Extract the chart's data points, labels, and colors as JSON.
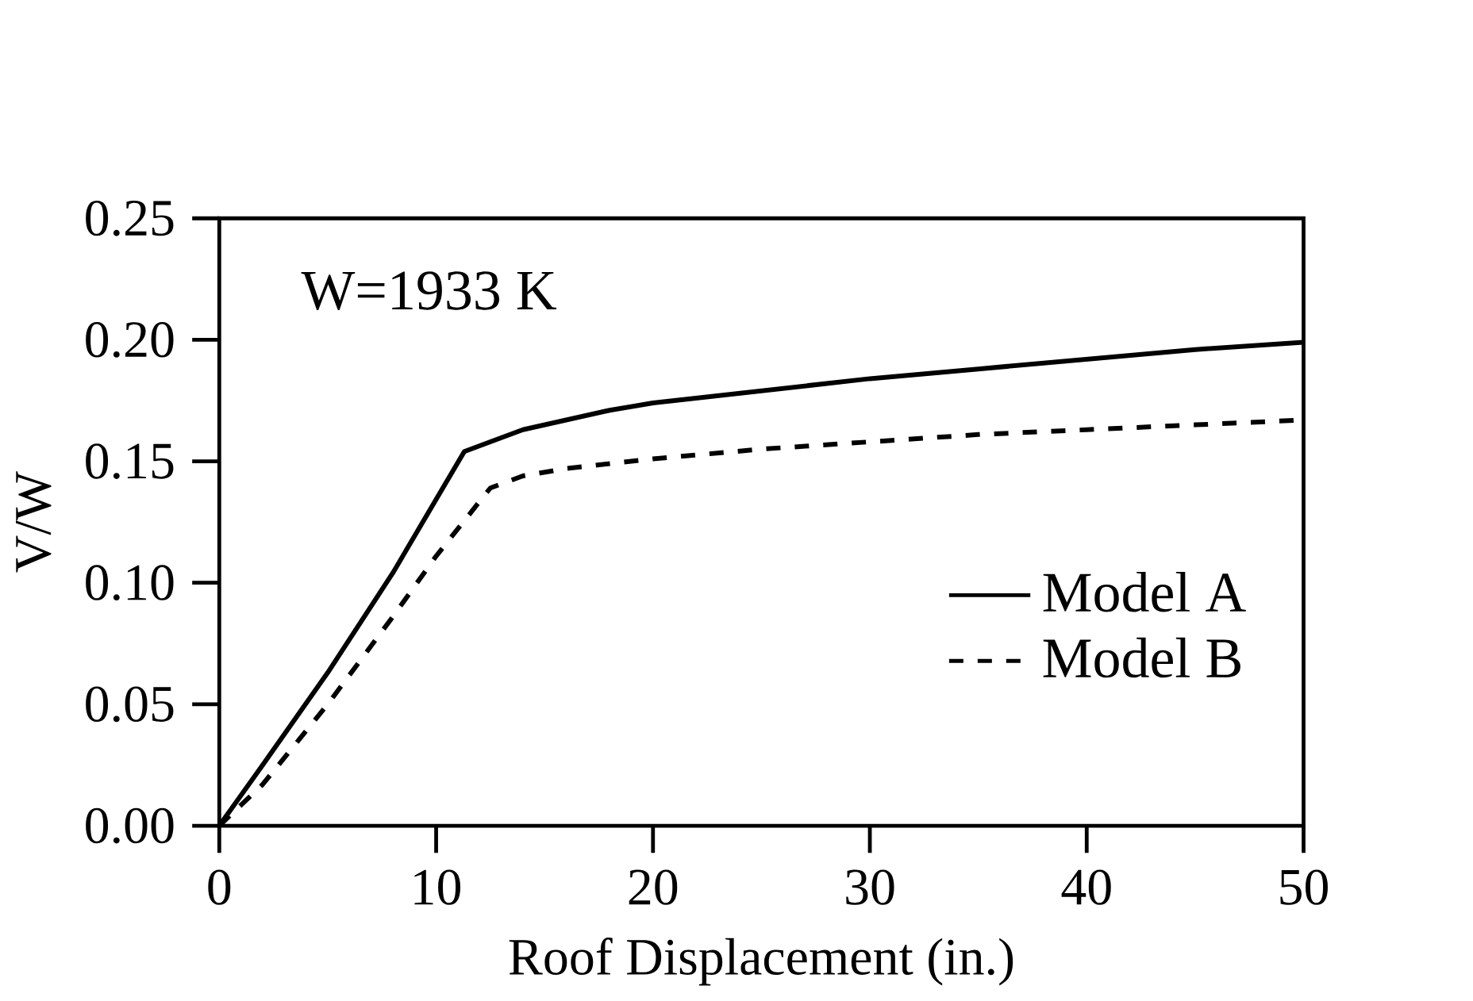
{
  "chart_data": {
    "type": "line",
    "xlabel": "Roof Displacement (in.)",
    "ylabel": "V/W",
    "annotations": [
      "W=1933 K"
    ],
    "xlim": [
      0,
      50
    ],
    "ylim": [
      0,
      0.25
    ],
    "xticks": [
      0,
      10,
      20,
      30,
      40,
      50
    ],
    "yticks": [
      {
        "value": 0,
        "label": "0.00"
      },
      {
        "value": 0.05,
        "label": "0.05"
      },
      {
        "value": 0.1,
        "label": "0.10"
      },
      {
        "value": 0.15,
        "label": "0.15"
      },
      {
        "value": 0.2,
        "label": "0.20"
      },
      {
        "value": 0.25,
        "label": "0.25"
      }
    ],
    "legend": "bottom right",
    "grid": false,
    "series": [
      {
        "name": "Model A",
        "color": "#000000",
        "line_style": "solid",
        "x": [
          0,
          2,
          5,
          8,
          11.3,
          12.5,
          14,
          16,
          18,
          20,
          25,
          30,
          35,
          40,
          45,
          50
        ],
        "values": [
          0,
          0.025,
          0.063,
          0.104,
          0.154,
          0.158,
          0.163,
          0.167,
          0.171,
          0.174,
          0.179,
          0.184,
          0.188,
          0.192,
          0.196,
          0.199
        ]
      },
      {
        "name": "Model B",
        "color": "#000000",
        "line_style": "dashed",
        "x": [
          0,
          2,
          5,
          8,
          10,
          12.5,
          14,
          16,
          20,
          25,
          30,
          35,
          40,
          45,
          50
        ],
        "values": [
          0,
          0.017,
          0.05,
          0.086,
          0.111,
          0.139,
          0.144,
          0.147,
          0.151,
          0.155,
          0.158,
          0.161,
          0.163,
          0.165,
          0.167
        ]
      }
    ]
  }
}
